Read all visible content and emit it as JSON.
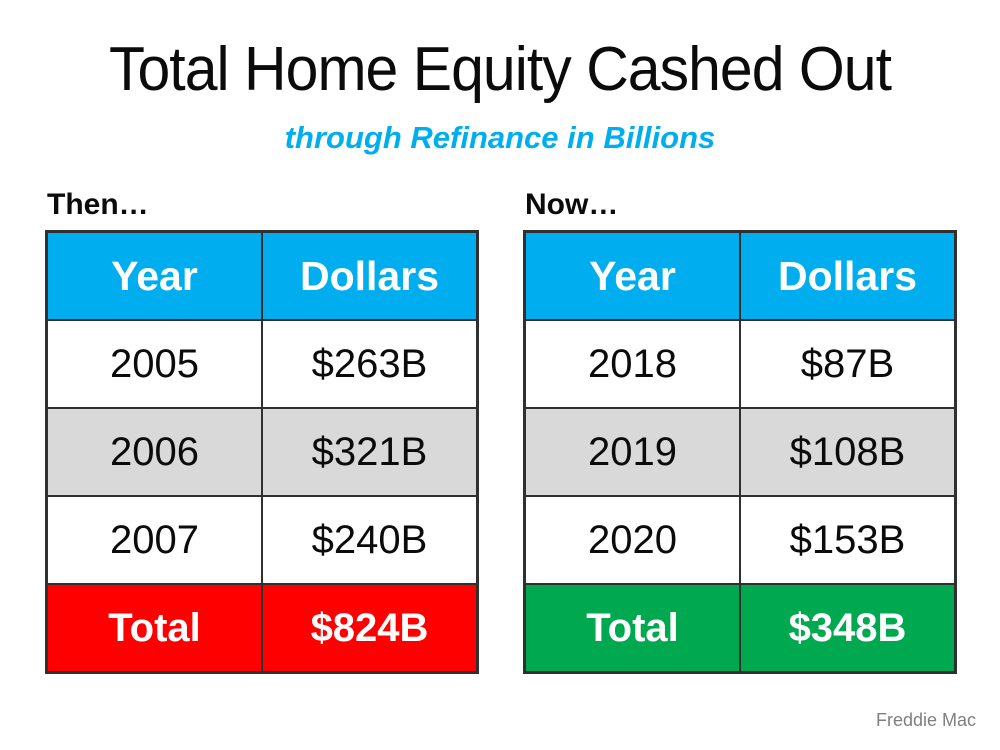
{
  "colors": {
    "accent_blue": "#00AEEF",
    "header_bg": "#00AEEF",
    "stripe_gray": "#D9D9D9",
    "total_then_bg": "#FF0000",
    "total_now_bg": "#00A94F",
    "border": "#303030",
    "source_gray": "#7F7F7F"
  },
  "header": {
    "title": "Total Home Equity Cashed Out",
    "subtitle": "through Refinance in Billions"
  },
  "source": "Freddie Mac",
  "chart_data": [
    {
      "type": "table",
      "title": "Then…",
      "columns": [
        "Year",
        "Dollars"
      ],
      "rows": [
        [
          "2005",
          "$263B"
        ],
        [
          "2006",
          "$321B"
        ],
        [
          "2007",
          "$240B"
        ]
      ],
      "values_billions": [
        263,
        321,
        240
      ],
      "total": [
        "Total",
        "$824B"
      ],
      "total_billions": 824,
      "total_color": "#FF0000",
      "layout_hint": "left table, header cyan, alternating white/gray rows, red total row"
    },
    {
      "type": "table",
      "title": "Now…",
      "columns": [
        "Year",
        "Dollars"
      ],
      "rows": [
        [
          "2018",
          "$87B"
        ],
        [
          "2019",
          "$108B"
        ],
        [
          "2020",
          "$153B"
        ]
      ],
      "values_billions": [
        87,
        108,
        153
      ],
      "total": [
        "Total",
        "$348B"
      ],
      "total_billions": 348,
      "total_color": "#00A94F",
      "layout_hint": "right table, header cyan, alternating white/gray rows, green total row"
    }
  ]
}
